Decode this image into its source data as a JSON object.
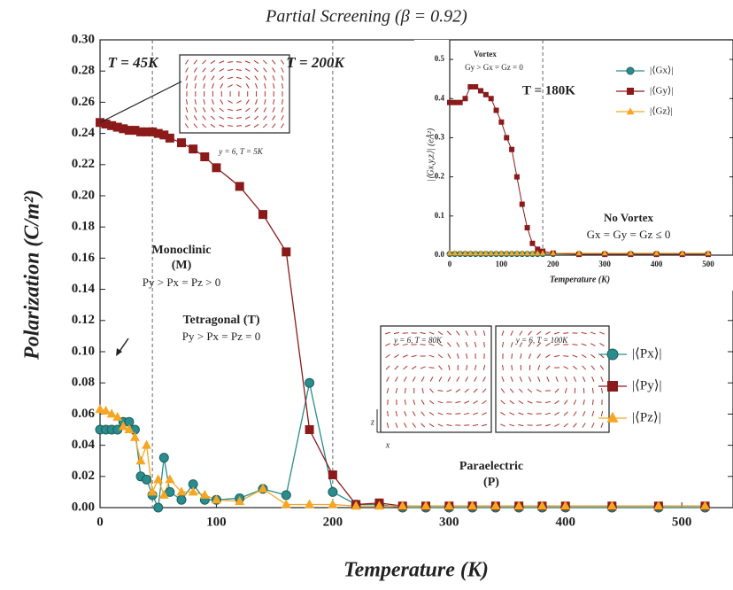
{
  "chart_data": [
    {
      "type": "line",
      "title": "Partial Screening (β = 0.92)",
      "xlabel": "Temperature (K)",
      "ylabel": "Polarization (C/m²)",
      "x": [
        0,
        5,
        10,
        15,
        20,
        25,
        30,
        35,
        40,
        45,
        50,
        55,
        60,
        70,
        80,
        90,
        100,
        120,
        140,
        160,
        180,
        200,
        220,
        240,
        260,
        280,
        300,
        320,
        340,
        360,
        380,
        400,
        440,
        480,
        520
      ],
      "series": [
        {
          "name": "|⟨Px⟩|",
          "color": "#2a8c8c",
          "marker": "circle",
          "values": [
            0.05,
            0.05,
            0.05,
            0.05,
            0.055,
            0.055,
            0.05,
            0.02,
            0.018,
            0.008,
            0.0,
            0.032,
            0.01,
            0.005,
            0.015,
            0.005,
            0.005,
            0.006,
            0.012,
            0.008,
            0.08,
            0.01,
            0.002,
            0.002,
            0.0,
            0.0,
            0.0,
            0.0,
            0.0,
            0.0,
            0.0,
            0.0,
            0.0,
            0.0,
            0.0
          ]
        },
        {
          "name": "|⟨Py⟩|",
          "color": "#8b1a1a",
          "marker": "square",
          "values": [
            0.247,
            0.246,
            0.245,
            0.244,
            0.243,
            0.242,
            0.242,
            0.241,
            0.241,
            0.241,
            0.24,
            0.239,
            0.237,
            0.234,
            0.23,
            0.225,
            0.218,
            0.206,
            0.188,
            0.164,
            0.05,
            0.021,
            0.002,
            0.003,
            0.001,
            0.001,
            0.001,
            0.001,
            0.001,
            0.001,
            0.001,
            0.001,
            0.001,
            0.001,
            0.001
          ]
        },
        {
          "name": "|⟨Pz⟩|",
          "color": "#f5a623",
          "marker": "triangle",
          "values": [
            0.063,
            0.062,
            0.06,
            0.058,
            0.052,
            0.05,
            0.045,
            0.03,
            0.04,
            0.01,
            0.018,
            0.008,
            0.018,
            0.01,
            0.01,
            0.008,
            0.005,
            0.004,
            0.012,
            0.002,
            0.002,
            0.002,
            0.001,
            0.001,
            0.001,
            0.001,
            0.001,
            0.001,
            0.001,
            0.001,
            0.001,
            0.001,
            0.001,
            0.001,
            0.001
          ]
        }
      ],
      "xlim": [
        0,
        544
      ],
      "xticks": [
        0,
        100,
        200,
        300,
        400,
        500
      ],
      "ylim": [
        0,
        0.3
      ],
      "yticks": [
        {
          "value": 0,
          "label": "0.00"
        },
        {
          "value": 0.02,
          "label": "0.02"
        },
        {
          "value": 0.04,
          "label": "0.04"
        },
        {
          "value": 0.06,
          "label": "0.06"
        },
        {
          "value": 0.08,
          "label": "0.08"
        },
        {
          "value": 0.1,
          "label": "0.10"
        },
        {
          "value": 0.12,
          "label": "0.12"
        },
        {
          "value": 0.14,
          "label": "0.14"
        },
        {
          "value": 0.16,
          "label": "0.16"
        },
        {
          "value": 0.18,
          "label": "0.18"
        },
        {
          "value": 0.2,
          "label": "0.20"
        },
        {
          "value": 0.22,
          "label": "0.22"
        },
        {
          "value": 0.24,
          "label": "0.24"
        },
        {
          "value": 0.26,
          "label": "0.26"
        },
        {
          "value": 0.28,
          "label": "0.28"
        },
        {
          "value": 0.3,
          "label": "0.30"
        }
      ],
      "vlines": [
        45,
        200
      ],
      "annotations": [
        "T = 45K",
        "T = 200K",
        "y = 6, T = 5K",
        "Monoclinic",
        "(M)",
        "Py > Px = Pz > 0",
        "Tetragonal (T)",
        "Py > Px = Pz = 0",
        "Paraelectric",
        "(P)",
        "y = 6, T = 80K",
        "y = 6, T = 100K",
        "z",
        "x"
      ]
    },
    {
      "type": "line",
      "xlabel": "Temperature (K)",
      "ylabel": "|⟨Gx,y,z⟩| (eÅ²)",
      "x": [
        0,
        10,
        20,
        30,
        40,
        50,
        60,
        70,
        80,
        90,
        100,
        110,
        120,
        130,
        140,
        150,
        160,
        170,
        180,
        200,
        250,
        300,
        350,
        400,
        450,
        500
      ],
      "series": [
        {
          "name": "|⟨Gx⟩|",
          "color": "#2a8c8c",
          "marker": "circle",
          "values": [
            0.003,
            0.003,
            0.003,
            0.003,
            0.003,
            0.003,
            0.003,
            0.003,
            0.003,
            0.003,
            0.003,
            0.003,
            0.003,
            0.003,
            0.003,
            0.003,
            0.003,
            0.003,
            0.003,
            0.003,
            0.003,
            0.003,
            0.003,
            0.003,
            0.003,
            0.003
          ]
        },
        {
          "name": "|⟨Gy⟩|",
          "color": "#8b1a1a",
          "marker": "square",
          "values": [
            0.39,
            0.39,
            0.39,
            0.4,
            0.43,
            0.43,
            0.42,
            0.41,
            0.4,
            0.37,
            0.34,
            0.3,
            0.27,
            0.2,
            0.13,
            0.07,
            0.03,
            0.015,
            0.01,
            0.005,
            0.002,
            0.002,
            0.002,
            0.002,
            0.002,
            0.002
          ]
        },
        {
          "name": "|⟨Gz⟩|",
          "color": "#f5a623",
          "marker": "triangle",
          "values": [
            0.005,
            0.005,
            0.005,
            0.005,
            0.005,
            0.005,
            0.005,
            0.005,
            0.005,
            0.005,
            0.005,
            0.005,
            0.005,
            0.005,
            0.005,
            0.005,
            0.005,
            0.005,
            0.005,
            0.005,
            0.005,
            0.005,
            0.005,
            0.005,
            0.005,
            0.005
          ]
        }
      ],
      "xlim": [
        0,
        548
      ],
      "xticks": [
        0,
        100,
        200,
        300,
        400,
        500
      ],
      "ylim": [
        0,
        0.55
      ],
      "yticks": [
        {
          "value": 0,
          "label": "0.0"
        },
        {
          "value": 0.1,
          "label": "0.1"
        },
        {
          "value": 0.2,
          "label": "0.2"
        },
        {
          "value": 0.3,
          "label": "0.3"
        },
        {
          "value": 0.4,
          "label": "0.4"
        },
        {
          "value": 0.5,
          "label": "0.5"
        }
      ],
      "vlines": [
        180
      ],
      "annotations": [
        "Vortex",
        "Gy > Gx = Gz = 0",
        "T = 180K",
        "No Vortex",
        "Gx = Gy = Gz ≤ 0"
      ]
    }
  ]
}
